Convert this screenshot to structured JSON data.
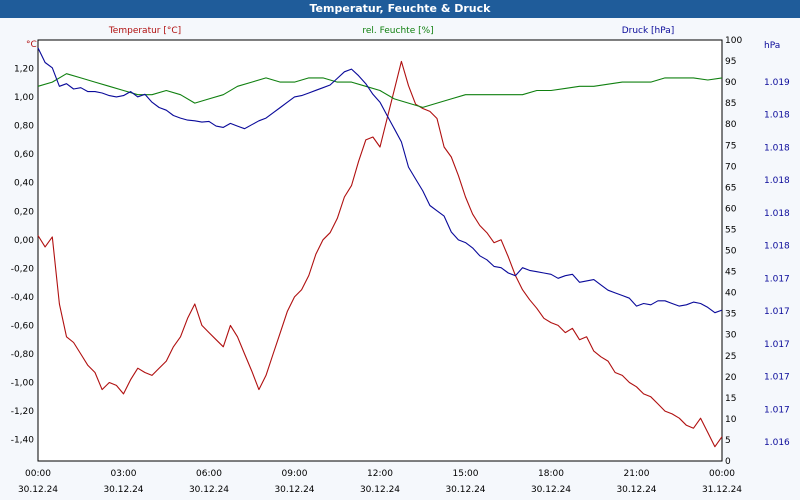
{
  "window": {
    "title": "Temperatur, Feuchte & Druck"
  },
  "colors": {
    "temperature": "#b01010",
    "humidity": "#108010",
    "pressure": "#0a0a9a",
    "titlebar": "#1f5c9a"
  },
  "chart_data": {
    "type": "line",
    "title": "Temperatur, Feuchte & Druck",
    "grid": true,
    "x_tick_labels": [
      {
        "time": "00:00",
        "date": "30.12.24"
      },
      {
        "time": "03:00",
        "date": "30.12.24"
      },
      {
        "time": "06:00",
        "date": "30.12.24"
      },
      {
        "time": "09:00",
        "date": "30.12.24"
      },
      {
        "time": "12:00",
        "date": "30.12.24"
      },
      {
        "time": "15:00",
        "date": "30.12.24"
      },
      {
        "time": "18:00",
        "date": "30.12.24"
      },
      {
        "time": "21:00",
        "date": "30.12.24"
      },
      {
        "time": "00:00",
        "date": "31.12.24"
      }
    ],
    "axes": {
      "temperature": {
        "label": "Temperatur [°C]",
        "unit": "°C",
        "ylim": [
          -1.55,
          1.4
        ],
        "ticks": [
          "1,20",
          "1,00",
          "0,80",
          "0,60",
          "0,40",
          "0,20",
          "0,00",
          "-0,20",
          "-0,40",
          "-0,60",
          "-0,80",
          "-1,00",
          "-1,20",
          "-1,40"
        ]
      },
      "humidity": {
        "label": "rel. Feuchte [%]",
        "unit": "%",
        "ylim": [
          0,
          100
        ],
        "ticks": [
          "0",
          "5",
          "10",
          "15",
          "20",
          "25",
          "30",
          "35",
          "40",
          "45",
          "50",
          "55",
          "60",
          "65",
          "70",
          "75",
          "80",
          "85",
          "90",
          "95",
          "100"
        ]
      },
      "pressure": {
        "label": "Druck [hPa]",
        "unit": "hPa",
        "ticks": [
          "1.019",
          "1.018",
          "1.018",
          "1.018",
          "1.018",
          "1.018",
          "1.017",
          "1.017",
          "1.017",
          "1.017",
          "1.017",
          "1.016"
        ]
      }
    },
    "series": [
      {
        "name": "Temperatur [°C]",
        "axis": "temperature",
        "x": [
          0,
          0.25,
          0.5,
          0.75,
          1.0,
          1.25,
          1.5,
          1.75,
          2.0,
          2.25,
          2.5,
          2.75,
          3.0,
          3.25,
          3.5,
          3.75,
          4.0,
          4.25,
          4.5,
          4.75,
          5.0,
          5.25,
          5.5,
          5.75,
          6.0,
          6.25,
          6.5,
          6.75,
          7.0,
          7.25,
          7.5,
          7.75,
          8.0,
          8.25,
          8.5,
          8.75,
          9.0,
          9.25,
          9.5,
          9.75,
          10.0,
          10.25,
          10.5,
          10.75,
          11.0,
          11.25,
          11.5,
          11.75,
          12.0,
          12.25,
          12.5,
          12.75,
          13.0,
          13.25,
          13.5,
          13.75,
          14.0,
          14.25,
          14.5,
          14.75,
          15.0,
          15.25,
          15.5,
          15.75,
          16.0,
          16.25,
          16.5,
          16.75,
          17.0,
          17.25,
          17.5,
          17.75,
          18.0,
          18.25,
          18.5,
          18.75,
          19.0,
          19.25,
          19.5,
          19.75,
          20.0,
          20.25,
          20.5,
          20.75,
          21.0,
          21.25,
          21.5,
          21.75,
          22.0,
          22.25,
          22.5,
          22.75,
          23.0,
          23.25,
          23.5,
          23.75,
          24.0
        ],
        "values": [
          0.03,
          -0.05,
          0.02,
          -0.45,
          -0.68,
          -0.72,
          -0.8,
          -0.88,
          -0.93,
          -1.05,
          -1.0,
          -1.02,
          -1.08,
          -0.98,
          -0.9,
          -0.93,
          -0.95,
          -0.9,
          -0.85,
          -0.75,
          -0.68,
          -0.55,
          -0.45,
          -0.6,
          -0.65,
          -0.7,
          -0.75,
          -0.6,
          -0.68,
          -0.8,
          -0.92,
          -1.05,
          -0.95,
          -0.8,
          -0.65,
          -0.5,
          -0.4,
          -0.35,
          -0.25,
          -0.1,
          0.0,
          0.05,
          0.15,
          0.3,
          0.38,
          0.55,
          0.7,
          0.72,
          0.65,
          0.85,
          1.05,
          1.25,
          1.08,
          0.95,
          0.92,
          0.9,
          0.85,
          0.65,
          0.58,
          0.45,
          0.3,
          0.18,
          0.1,
          0.05,
          -0.02,
          0.0,
          -0.12,
          -0.25,
          -0.35,
          -0.42,
          -0.48,
          -0.55,
          -0.58,
          -0.6,
          -0.65,
          -0.62,
          -0.7,
          -0.68,
          -0.78,
          -0.82,
          -0.85,
          -0.93,
          -0.95,
          -1.0,
          -1.03,
          -1.08,
          -1.1,
          -1.15,
          -1.2,
          -1.22,
          -1.25,
          -1.3,
          -1.32,
          -1.25,
          -1.35,
          -1.45,
          -1.38
        ]
      },
      {
        "name": "rel. Feuchte [%]",
        "axis": "humidity",
        "x": [
          0,
          0.5,
          1.0,
          1.5,
          2.0,
          2.5,
          3.0,
          3.5,
          4.0,
          4.5,
          5.0,
          5.5,
          6.0,
          6.5,
          7.0,
          7.5,
          8.0,
          8.5,
          9.0,
          9.5,
          10.0,
          10.5,
          11.0,
          11.5,
          12.0,
          12.5,
          13.0,
          13.5,
          14.0,
          14.5,
          15.0,
          15.5,
          16.0,
          16.5,
          17.0,
          17.5,
          18.0,
          18.5,
          19.0,
          19.5,
          20.0,
          20.5,
          21.0,
          21.5,
          22.0,
          22.5,
          23.0,
          23.5,
          24.0
        ],
        "values": [
          89,
          90,
          92,
          91,
          90,
          89,
          88,
          87,
          87,
          88,
          87,
          85,
          86,
          87,
          89,
          90,
          91,
          90,
          90,
          91,
          91,
          90,
          90,
          89,
          88,
          86,
          85,
          84,
          85,
          86,
          87,
          87,
          87,
          87,
          87,
          88,
          88,
          88.5,
          89,
          89,
          89.5,
          90,
          90,
          90,
          91,
          91,
          91,
          90.5,
          91
        ]
      },
      {
        "name": "Druck [hPa]",
        "axis": "pressure",
        "x": [
          0,
          0.25,
          0.5,
          0.75,
          1.0,
          1.25,
          1.5,
          1.75,
          2.0,
          2.25,
          2.5,
          2.75,
          3.0,
          3.25,
          3.5,
          3.75,
          4.0,
          4.25,
          4.5,
          4.75,
          5.0,
          5.25,
          5.5,
          5.75,
          6.0,
          6.25,
          6.5,
          6.75,
          7.0,
          7.25,
          7.5,
          7.75,
          8.0,
          8.25,
          8.5,
          8.75,
          9.0,
          9.25,
          9.5,
          9.75,
          10.0,
          10.25,
          10.5,
          10.75,
          11.0,
          11.25,
          11.5,
          11.75,
          12.0,
          12.25,
          12.5,
          12.75,
          13.0,
          13.25,
          13.5,
          13.75,
          14.0,
          14.25,
          14.5,
          14.75,
          15.0,
          15.25,
          15.5,
          15.75,
          16.0,
          16.25,
          16.5,
          16.75,
          17.0,
          17.25,
          17.5,
          17.75,
          18.0,
          18.25,
          18.5,
          18.75,
          19.0,
          19.25,
          19.5,
          19.75,
          20.0,
          20.25,
          20.5,
          20.75,
          21.0,
          21.25,
          21.5,
          21.75,
          22.0,
          22.25,
          22.5,
          22.75,
          23.0,
          23.25,
          23.5,
          23.75,
          24.0
        ],
        "values": [
          1.01917,
          1.01906,
          1.01902,
          1.01888,
          1.0189,
          1.01886,
          1.01887,
          1.01884,
          1.01884,
          1.01883,
          1.01881,
          1.0188,
          1.01881,
          1.01884,
          1.0188,
          1.01882,
          1.01876,
          1.01872,
          1.0187,
          1.01866,
          1.01864,
          1.018625,
          1.01862,
          1.01861,
          1.018615,
          1.01858,
          1.01857,
          1.0186,
          1.01858,
          1.01856,
          1.01859,
          1.01862,
          1.01864,
          1.01868,
          1.01872,
          1.01876,
          1.0188,
          1.01881,
          1.01883,
          1.01885,
          1.01887,
          1.01889,
          1.01894,
          1.01899,
          1.01901,
          1.01896,
          1.0189,
          1.01882,
          1.01876,
          1.01866,
          1.01856,
          1.01846,
          1.01827,
          1.01818,
          1.01809,
          1.01798,
          1.01794,
          1.0179,
          1.01778,
          1.01772,
          1.0177,
          1.01766,
          1.0176,
          1.01757,
          1.01752,
          1.01751,
          1.01747,
          1.01745,
          1.01751,
          1.01749,
          1.01748,
          1.01747,
          1.01746,
          1.01743,
          1.01745,
          1.01746,
          1.0174,
          1.01741,
          1.01742,
          1.01738,
          1.01734,
          1.01732,
          1.0173,
          1.01728,
          1.01722,
          1.01724,
          1.01723,
          1.01726,
          1.01726,
          1.01724,
          1.01722,
          1.01723,
          1.01725,
          1.01724,
          1.01721,
          1.01717,
          1.01719
        ]
      }
    ]
  }
}
